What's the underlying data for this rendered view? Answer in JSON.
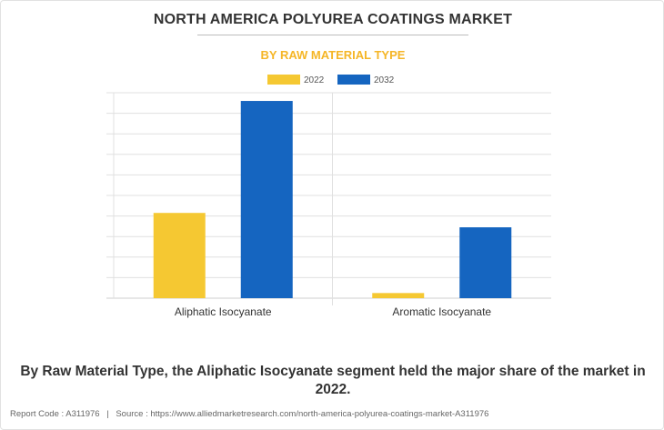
{
  "page": {
    "title": "NORTH AMERICA POLYUREA COATINGS MARKET",
    "subtitle": "BY RAW MATERIAL TYPE",
    "caption": "By Raw Material Type, the Aliphatic Isocyanate segment held the major share of the market in 2022.",
    "footer": {
      "report_code": "Report Code : A311976",
      "separator": "|",
      "source": "Source : https://www.alliedmarketresearch.com/north-america-polyurea-coatings-market-A311976"
    }
  },
  "colors": {
    "series_2022": "#f5c832",
    "series_2032": "#1565c0",
    "subtitle": "#f5b627",
    "grid": "#e0e0e0"
  },
  "chart_data": {
    "type": "bar",
    "categories": [
      "Aliphatic Isocyanate",
      "Aromatic Isocyanate"
    ],
    "series": [
      {
        "name": "2022",
        "values": [
          41.5,
          2.5
        ]
      },
      {
        "name": "2032",
        "values": [
          96,
          34.5
        ]
      }
    ],
    "ylim": [
      0,
      100
    ],
    "grid": true,
    "gridline_count": 10,
    "legend_position": "top-center"
  }
}
